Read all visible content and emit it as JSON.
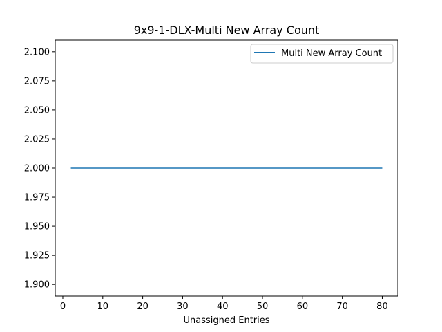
{
  "chart_data": {
    "type": "line",
    "title": "9x9-1-DLX-Multi New Array Count",
    "xlabel": "Unassigned Entries",
    "ylabel": "",
    "xlim": [
      -1.9,
      83.9
    ],
    "ylim": [
      1.89,
      2.11
    ],
    "xticks": [
      0,
      10,
      20,
      30,
      40,
      50,
      60,
      70,
      80
    ],
    "xtick_labels": [
      "0",
      "10",
      "20",
      "30",
      "40",
      "50",
      "60",
      "70",
      "80"
    ],
    "yticks": [
      1.9,
      1.925,
      1.95,
      1.975,
      2.0,
      2.025,
      2.05,
      2.075,
      2.1
    ],
    "ytick_labels": [
      "1.900",
      "1.925",
      "1.950",
      "1.975",
      "2.000",
      "2.025",
      "2.050",
      "2.075",
      "2.100"
    ],
    "grid": false,
    "legend_position": "top-right",
    "series": [
      {
        "name": "Multi New Array Count",
        "color": "#1f77b4",
        "x": [
          2,
          80
        ],
        "y": [
          2.0,
          2.0
        ]
      }
    ]
  }
}
